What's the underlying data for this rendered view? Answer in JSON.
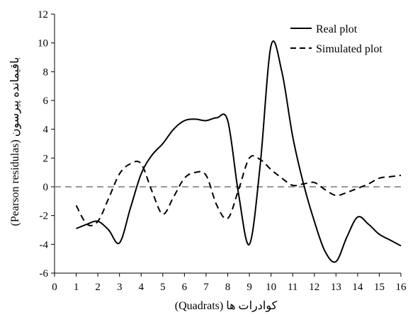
{
  "chart_data": {
    "type": "line",
    "xlabel": "کوادرات ها (Quadrats)",
    "ylabel": "باقیمانده پیرسون (Pearson residulas)",
    "xlim": [
      0,
      16
    ],
    "ylim": [
      -6,
      12
    ],
    "xticks": [
      0,
      1,
      2,
      3,
      4,
      5,
      6,
      7,
      8,
      9,
      10,
      11,
      12,
      13,
      14,
      15,
      16
    ],
    "yticks": [
      -6,
      -4,
      -2,
      0,
      2,
      4,
      6,
      8,
      10,
      12
    ],
    "grid": false,
    "legend_position": "top-right",
    "reference_line": {
      "y": 0,
      "style": "dashed",
      "color": "#999999"
    },
    "series": [
      {
        "name": "Real plot",
        "style": "solid",
        "color": "#000000",
        "x": [
          1,
          1.5,
          2,
          2.5,
          3,
          3.5,
          4,
          4.5,
          5,
          5.5,
          6,
          6.5,
          7,
          7.5,
          8,
          8.5,
          9,
          9.5,
          10,
          10.5,
          11,
          11.5,
          12,
          12.5,
          13,
          13.5,
          14,
          14.5,
          15,
          15.5,
          16
        ],
        "values": [
          -2.9,
          -2.6,
          -2.4,
          -3.0,
          -3.9,
          -1.5,
          0.9,
          2.2,
          3.0,
          4.0,
          4.6,
          4.7,
          4.6,
          4.8,
          4.6,
          -0.5,
          -4.0,
          1.5,
          9.8,
          8.0,
          3.5,
          0.2,
          -2.4,
          -4.5,
          -5.2,
          -3.5,
          -2.1,
          -2.6,
          -3.3,
          -3.7,
          -4.1
        ]
      },
      {
        "name": "Simulated plot",
        "style": "dashed",
        "color": "#000000",
        "x": [
          1,
          1.5,
          2,
          2.5,
          3,
          3.5,
          4,
          4.5,
          5,
          5.5,
          6,
          6.5,
          7,
          7.5,
          8,
          8.5,
          9,
          9.5,
          10,
          10.5,
          11,
          11.5,
          12,
          12.5,
          13,
          13.5,
          14,
          14.5,
          15,
          15.5,
          16
        ],
        "values": [
          -1.3,
          -2.6,
          -2.4,
          -0.8,
          0.9,
          1.6,
          1.6,
          -0.3,
          -1.9,
          -0.7,
          0.6,
          1.0,
          0.8,
          -1.3,
          -2.2,
          -0.2,
          2.0,
          1.9,
          1.2,
          0.6,
          0.1,
          0.2,
          0.3,
          -0.2,
          -0.6,
          -0.4,
          -0.1,
          0.2,
          0.6,
          0.7,
          0.8
        ]
      }
    ]
  }
}
